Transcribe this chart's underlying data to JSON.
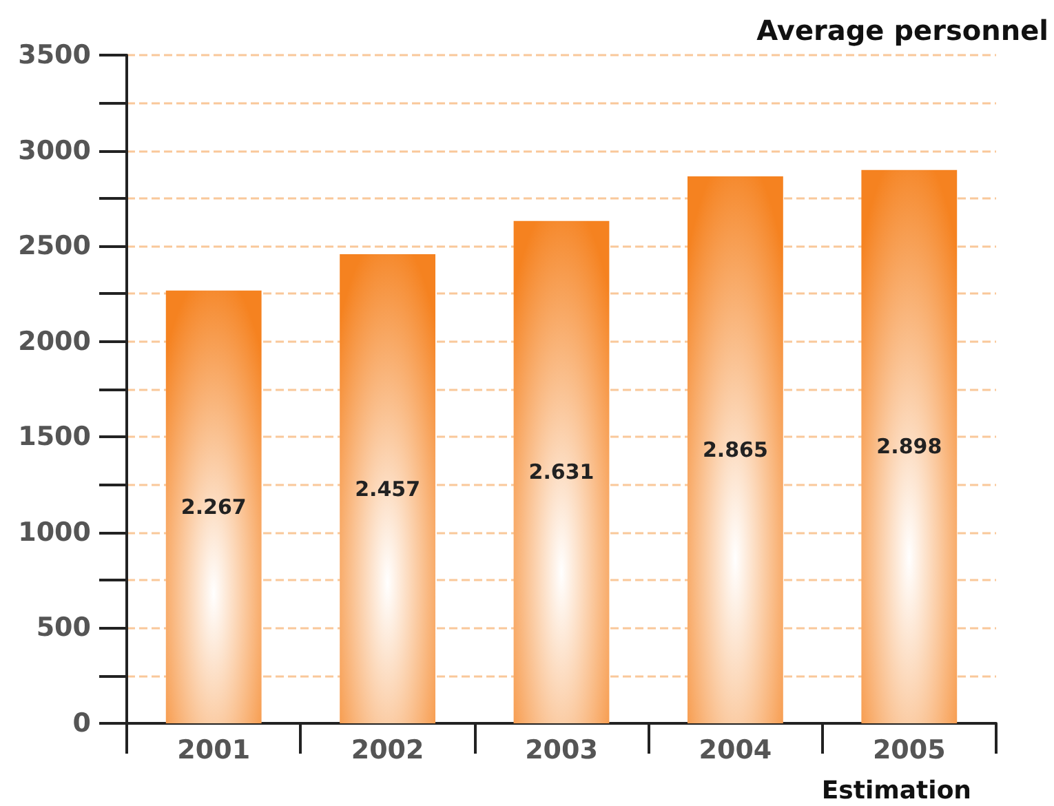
{
  "chart_data": {
    "type": "bar",
    "ylabel": "Average personnel",
    "xlabel": "Estimation",
    "categories": [
      "2001",
      "2002",
      "2003",
      "2004",
      "2005"
    ],
    "values": [
      2267,
      2457,
      2631,
      2865,
      2898
    ],
    "value_labels": [
      "2.267",
      "2.457",
      "2.631",
      "2.865",
      "2.898"
    ],
    "color": "#f58220",
    "ylim": [
      0,
      3500
    ],
    "yticks": [
      0,
      500,
      1000,
      1500,
      2000,
      2500,
      3000,
      3500
    ],
    "grid": "y"
  }
}
